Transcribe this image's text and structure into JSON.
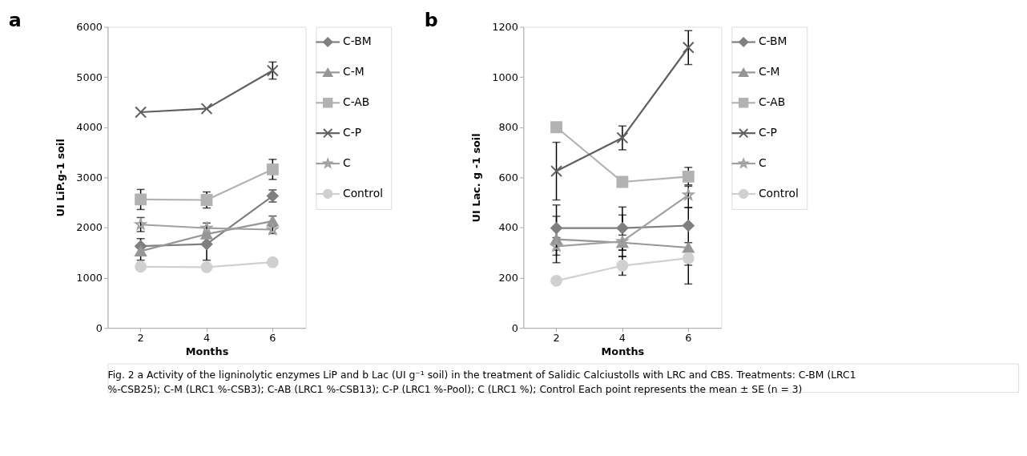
{
  "chart_data": [
    {
      "type": "line",
      "title": "a",
      "xlabel": "Months",
      "ylabel": "UI LiP.g-1 soil",
      "categories": [
        "2",
        "4",
        "6"
      ],
      "ylim": [
        0,
        6000
      ],
      "yticks": [
        0,
        1000,
        2000,
        3000,
        4000,
        5000,
        6000
      ],
      "grid": false,
      "legend": "right",
      "series": [
        {
          "name": "C-BM",
          "color": "#7f7f7f",
          "marker": "diamond",
          "values": [
            1630,
            1670,
            2630
          ],
          "errors": [
            150,
            [
              1350,
              1700
            ],
            120
          ]
        },
        {
          "name": "C-M",
          "color": "#969696",
          "marker": "triangle",
          "values": [
            1530,
            1870,
            2130
          ],
          "errors": [
            [
              1350,
              1600
            ],
            null,
            100
          ]
        },
        {
          "name": "C-AB",
          "color": "#b2b2b2",
          "marker": "square",
          "values": [
            2560,
            2550,
            3160
          ],
          "errors": [
            200,
            160,
            200
          ]
        },
        {
          "name": "C-P",
          "color": "#5f5f5f",
          "marker": "cross",
          "values": [
            4300,
            4370,
            5130
          ],
          "errors": [
            null,
            null,
            170
          ]
        },
        {
          "name": "C",
          "color": "#a0a0a0",
          "marker": "star",
          "values": [
            2060,
            1990,
            1960
          ],
          "errors": [
            140,
            100,
            80
          ]
        },
        {
          "name": "Control",
          "color": "#d0d0d0",
          "marker": "circle",
          "values": [
            1220,
            1210,
            1310
          ],
          "errors": [
            null,
            null,
            null
          ]
        }
      ],
      "annotations": [
        "Fig. 2 a Activity of the ligninolytic enzymes LiP and b Lac (UI g⁻¹ soil) in the treatment of Salidic Calciustolls with LRC and CBS. Treatments: C-BM (LRC1 %-CSB25); C-M (LRC1 %-CSB3); C-AB (LRC1 %-CSB13); C-P (LRC1 %-Pool); C (LRC1 %); Control Each point represents the mean ± SE (n = 3)"
      ]
    },
    {
      "type": "line",
      "title": "b",
      "xlabel": "Months",
      "ylabel": "UI Lac. g -1 soil",
      "categories": [
        "2",
        "4",
        "6"
      ],
      "ylim": [
        0,
        1200
      ],
      "yticks": [
        0,
        200,
        400,
        600,
        800,
        1000,
        1200
      ],
      "grid": false,
      "legend": "right",
      "series": [
        {
          "name": "C-BM",
          "color": "#7f7f7f",
          "marker": "diamond",
          "values": [
            398,
            398,
            408
          ],
          "errors": [
            [
              310,
              490
            ],
            [
              310,
              482
            ],
            [
              250,
              480
            ]
          ]
        },
        {
          "name": "C-M",
          "color": "#969696",
          "marker": "triangle",
          "values": [
            353,
            340,
            320
          ],
          "errors": [
            [
              260,
              445
            ],
            [
              285,
              450
            ],
            [
              175,
              340
            ]
          ]
        },
        {
          "name": "C-AB",
          "color": "#b2b2b2",
          "marker": "square",
          "values": [
            800,
            582,
            603
          ],
          "errors": [
            null,
            null,
            [
              570,
              640
            ]
          ]
        },
        {
          "name": "C-P",
          "color": "#5f5f5f",
          "marker": "cross",
          "values": [
            625,
            758,
            1118
          ],
          "errors": [
            [
              510,
              740
            ],
            [
              710,
              805
            ],
            [
              1050,
              1185
            ]
          ]
        },
        {
          "name": "C",
          "color": "#a0a0a0",
          "marker": "star",
          "values": [
            325,
            345,
            530
          ],
          "errors": [
            [
              290,
              360
            ],
            [
              310,
              370
            ],
            [
              480,
              565
            ]
          ]
        },
        {
          "name": "Control",
          "color": "#d0d0d0",
          "marker": "circle",
          "values": [
            188,
            248,
            278
          ],
          "errors": [
            null,
            [
              210,
              285
            ],
            null
          ]
        }
      ]
    }
  ]
}
